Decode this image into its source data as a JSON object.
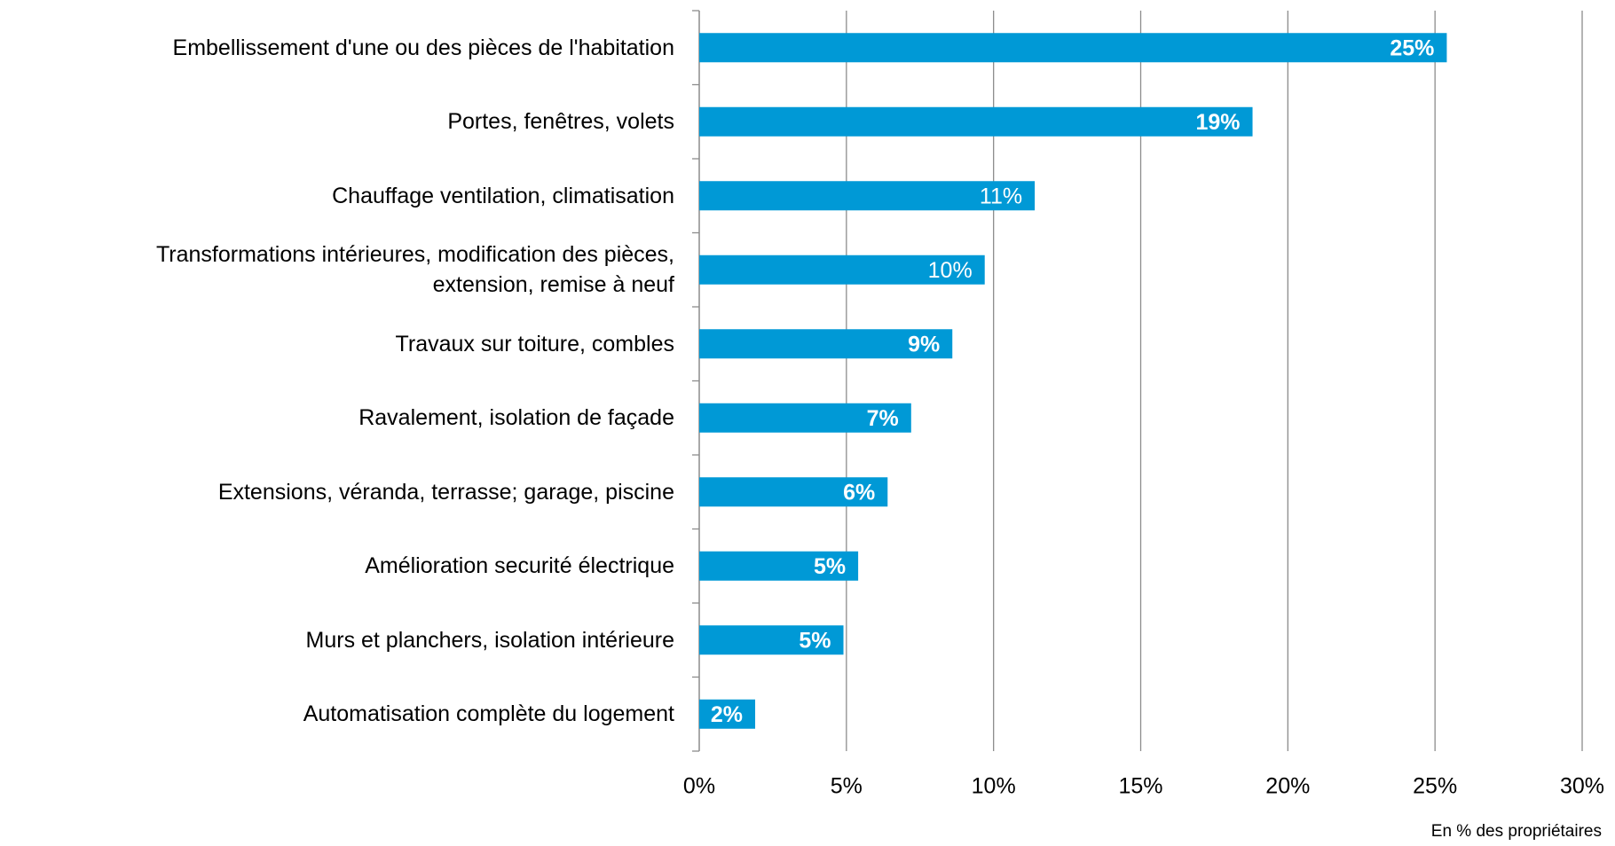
{
  "chart_data": {
    "type": "barh",
    "categories": [
      "Embellissement d'une ou des pièces de l'habitation",
      "Portes, fenêtres, volets",
      "Chauffage ventilation, climatisation",
      "Transformations intérieures, modification des pièces,\nextension, remise à neuf",
      "Travaux sur toiture, combles",
      "Ravalement, isolation de façade",
      "Extensions, véranda, terrasse; garage, piscine",
      "Amélioration securité électrique",
      "Murs et planchers, isolation intérieure",
      "Automatisation complète du logement"
    ],
    "values": [
      25.4,
      18.8,
      11.4,
      9.7,
      8.6,
      7.2,
      6.4,
      5.4,
      4.9,
      1.9
    ],
    "value_labels": [
      "25%",
      "19%",
      "11%",
      "10%",
      "9%",
      "7%",
      "6%",
      "5%",
      "5%",
      "2%"
    ],
    "value_label_bold": [
      true,
      true,
      false,
      false,
      true,
      true,
      true,
      true,
      true,
      true
    ],
    "color": "#0099d6",
    "xlim": [
      0,
      30
    ],
    "xticks": [
      {
        "value": 0,
        "label": "0%"
      },
      {
        "value": 5,
        "label": "5%"
      },
      {
        "value": 10,
        "label": "10%"
      },
      {
        "value": 15,
        "label": "15%"
      },
      {
        "value": 20,
        "label": "20%"
      },
      {
        "value": 25,
        "label": "25%"
      },
      {
        "value": 30,
        "label": "30%"
      }
    ],
    "grid": true,
    "xlabel": "En % des propriétaires"
  }
}
